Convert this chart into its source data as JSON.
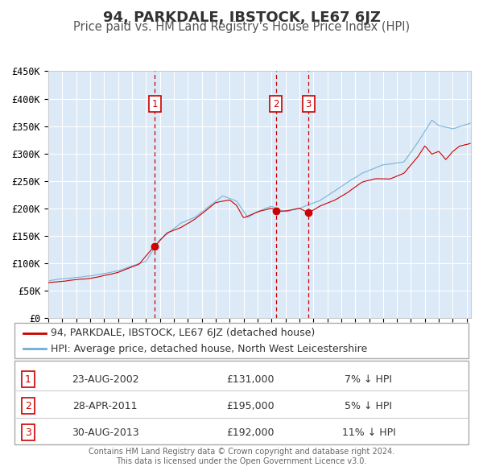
{
  "title": "94, PARKDALE, IBSTOCK, LE67 6JZ",
  "subtitle": "Price paid vs. HM Land Registry's House Price Index (HPI)",
  "ylim": [
    0,
    450000
  ],
  "yticks": [
    0,
    50000,
    100000,
    150000,
    200000,
    250000,
    300000,
    350000,
    400000,
    450000
  ],
  "ytick_labels": [
    "£0",
    "£50K",
    "£100K",
    "£150K",
    "£200K",
    "£250K",
    "£300K",
    "£350K",
    "£400K",
    "£450K"
  ],
  "xlim_start": 1995.0,
  "xlim_end": 2025.3,
  "xticks": [
    1995,
    1996,
    1997,
    1998,
    1999,
    2000,
    2001,
    2002,
    2003,
    2004,
    2005,
    2006,
    2007,
    2008,
    2009,
    2010,
    2011,
    2012,
    2013,
    2014,
    2015,
    2016,
    2017,
    2018,
    2019,
    2020,
    2021,
    2022,
    2023,
    2024,
    2025
  ],
  "plot_bg_color": "#dce9f7",
  "hpi_color": "#6baed6",
  "price_color": "#cc0000",
  "grid_color": "#ffffff",
  "vline_color": "#cc0000",
  "sale_points": [
    {
      "date_year": 2002.644,
      "price": 131000,
      "label": "1"
    },
    {
      "date_year": 2011.319,
      "price": 195000,
      "label": "2"
    },
    {
      "date_year": 2013.659,
      "price": 192000,
      "label": "3"
    }
  ],
  "legend_entries": [
    {
      "color": "#cc0000",
      "label": "94, PARKDALE, IBSTOCK, LE67 6JZ (detached house)"
    },
    {
      "color": "#6baed6",
      "label": "HPI: Average price, detached house, North West Leicestershire"
    }
  ],
  "table_data": [
    {
      "num": "1",
      "date": "23-AUG-2002",
      "price": "£131,000",
      "hpi": "7% ↓ HPI"
    },
    {
      "num": "2",
      "date": "28-APR-2011",
      "price": "£195,000",
      "hpi": "5% ↓ HPI"
    },
    {
      "num": "3",
      "date": "30-AUG-2013",
      "price": "£192,000",
      "hpi": "11% ↓ HPI"
    }
  ],
  "footer_line1": "Contains HM Land Registry data © Crown copyright and database right 2024.",
  "footer_line2": "This data is licensed under the Open Government Licence v3.0.",
  "title_fontsize": 13,
  "subtitle_fontsize": 10.5,
  "tick_fontsize": 8.5,
  "legend_fontsize": 9,
  "table_fontsize": 9
}
